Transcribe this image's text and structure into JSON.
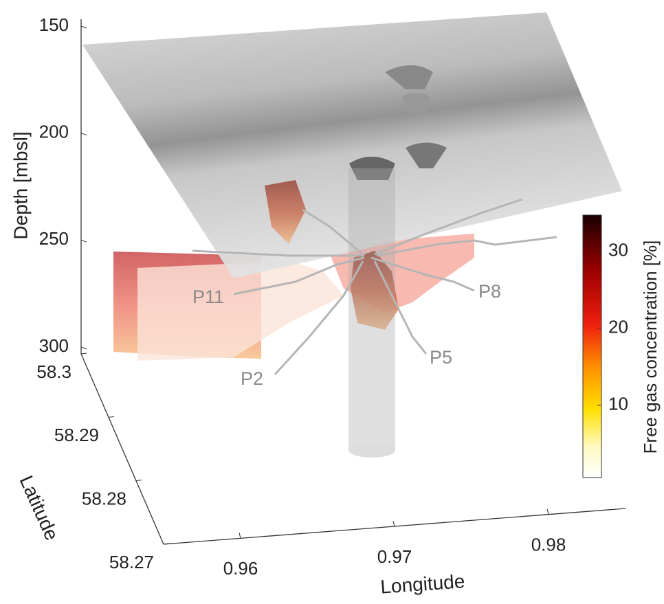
{
  "chart_data": {
    "type": "surface3d",
    "zlabel": "Depth [mbsl]",
    "ylabel": "Latitude",
    "xlabel": "Longitude",
    "zlim": [
      150,
      300
    ],
    "zticks": [
      150,
      200,
      250,
      300
    ],
    "ylim": [
      58.3,
      58.27
    ],
    "yticks": [
      58.3,
      58.29,
      58.28,
      58.27
    ],
    "xlim": [
      0.955,
      0.985
    ],
    "xticks": [
      0.96,
      0.97,
      0.98
    ],
    "colorbar": {
      "label": "Free gas concentration [%]",
      "clim": [
        0.6,
        34.7
      ],
      "ticks": [
        10,
        20,
        30
      ]
    },
    "annotations": [
      "P11",
      "P8",
      "P5",
      "P2"
    ]
  }
}
